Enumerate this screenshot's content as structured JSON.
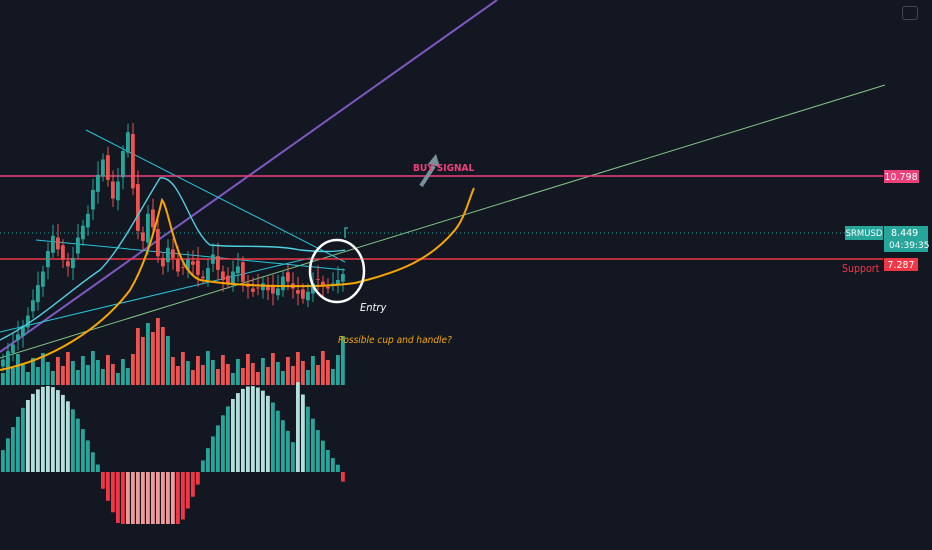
{
  "chart_data": {
    "type": "candlestick",
    "symbol": "SRMUSD",
    "last_price": "8.449",
    "countdown": "04:39:35",
    "levels": [
      {
        "price": "10.798",
        "color": "#ec407a",
        "role": "resistance"
      },
      {
        "price": "7.287",
        "color": "#f23645",
        "role": "support",
        "label": "Support"
      }
    ],
    "annotations": {
      "buy_signal": "BUY SIGNAL",
      "entry": "Entry",
      "pattern_note": "Possible cup and handle?"
    },
    "ylim": [
      2.5,
      19.0
    ],
    "volume_colors": {
      "up": "#26a69a",
      "down": "#ef5350"
    },
    "histogram_colors": {
      "positive": "#b2dfdb",
      "positive_strong": "#26a69a",
      "negative": "#ef9a9a",
      "negative_strong": "#f23645"
    }
  },
  "colors": {
    "background": "#131722",
    "up": "#26a69a",
    "down": "#ef5350",
    "cup_curve": "#f7a600",
    "purple_trend": "#7e57c2",
    "green_trend": "#81c784",
    "cyan_trend": "#26c6da",
    "ma_line": "#4dd0e1"
  }
}
